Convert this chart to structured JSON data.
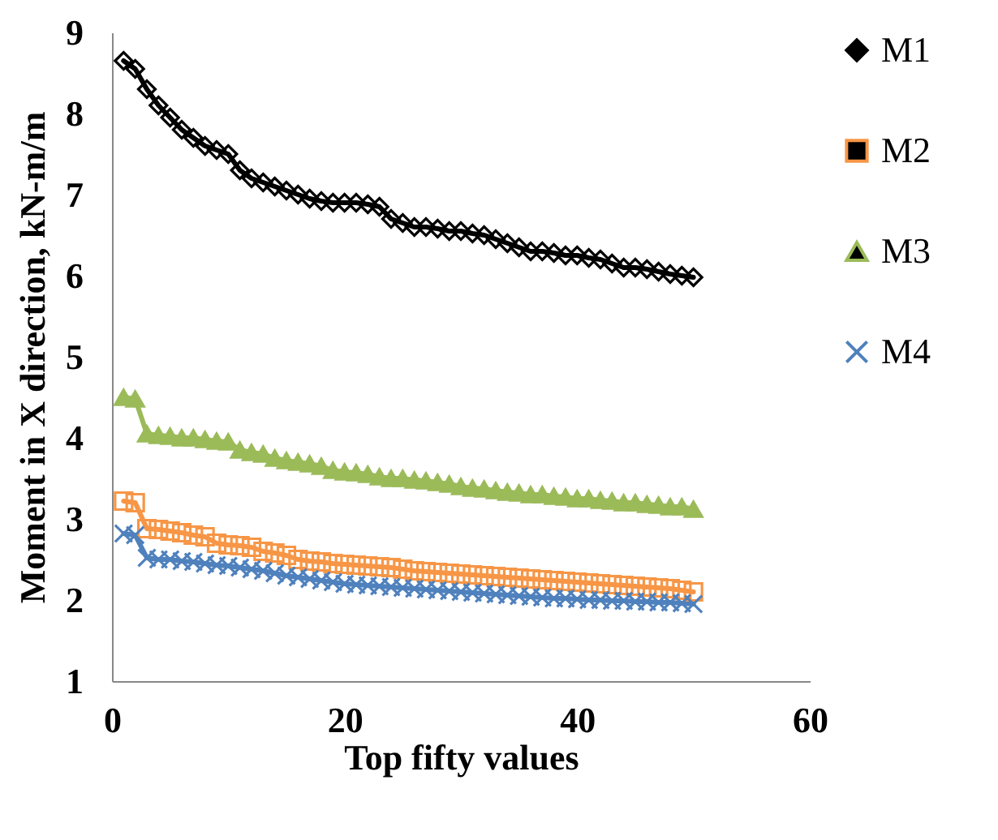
{
  "chart_data": {
    "type": "line",
    "xlabel": "Top fifty values",
    "ylabel": "Moment in X direction, kN-m/m",
    "x": [
      1,
      2,
      3,
      4,
      5,
      6,
      7,
      8,
      9,
      10,
      11,
      12,
      13,
      14,
      15,
      16,
      17,
      18,
      19,
      20,
      21,
      22,
      23,
      24,
      25,
      26,
      27,
      28,
      29,
      30,
      31,
      32,
      33,
      34,
      35,
      36,
      37,
      38,
      39,
      40,
      41,
      42,
      43,
      44,
      45,
      46,
      47,
      48,
      49,
      50
    ],
    "xlim": [
      0,
      60
    ],
    "xticks": [
      0,
      20,
      40,
      60
    ],
    "ylim": [
      1,
      9
    ],
    "yticks": [
      1,
      2,
      3,
      4,
      5,
      6,
      7,
      8,
      9
    ],
    "grid": false,
    "legend": "right",
    "line_style": "solid",
    "series": [
      {
        "name": "M1",
        "color": "#000000",
        "marker": "diamond",
        "values": [
          8.65,
          8.55,
          8.3,
          8.1,
          7.95,
          7.8,
          7.7,
          7.6,
          7.55,
          7.5,
          7.3,
          7.2,
          7.15,
          7.1,
          7.05,
          7.0,
          6.95,
          6.92,
          6.9,
          6.9,
          6.9,
          6.88,
          6.85,
          6.7,
          6.65,
          6.6,
          6.6,
          6.58,
          6.55,
          6.55,
          6.52,
          6.5,
          6.45,
          6.4,
          6.35,
          6.3,
          6.3,
          6.28,
          6.25,
          6.25,
          6.22,
          6.2,
          6.15,
          6.1,
          6.1,
          6.08,
          6.05,
          6.02,
          6.0,
          5.98
        ]
      },
      {
        "name": "M2",
        "color": "#f79646",
        "marker": "square",
        "values": [
          3.22,
          3.2,
          2.88,
          2.87,
          2.85,
          2.83,
          2.8,
          2.78,
          2.7,
          2.68,
          2.67,
          2.65,
          2.6,
          2.58,
          2.55,
          2.5,
          2.48,
          2.47,
          2.45,
          2.44,
          2.43,
          2.42,
          2.41,
          2.4,
          2.38,
          2.36,
          2.35,
          2.34,
          2.33,
          2.32,
          2.31,
          2.3,
          2.29,
          2.28,
          2.27,
          2.26,
          2.25,
          2.24,
          2.23,
          2.22,
          2.21,
          2.2,
          2.19,
          2.18,
          2.17,
          2.16,
          2.15,
          2.14,
          2.12,
          2.1
        ]
      },
      {
        "name": "M3",
        "color": "#9bbb59",
        "marker": "triangle",
        "values": [
          4.5,
          4.48,
          4.05,
          4.03,
          4.02,
          4.0,
          4.0,
          3.98,
          3.96,
          3.95,
          3.85,
          3.82,
          3.8,
          3.75,
          3.72,
          3.7,
          3.68,
          3.65,
          3.6,
          3.58,
          3.57,
          3.55,
          3.52,
          3.5,
          3.5,
          3.48,
          3.47,
          3.45,
          3.43,
          3.4,
          3.38,
          3.37,
          3.35,
          3.33,
          3.32,
          3.3,
          3.3,
          3.28,
          3.27,
          3.25,
          3.25,
          3.23,
          3.22,
          3.2,
          3.2,
          3.18,
          3.17,
          3.15,
          3.15,
          3.12
        ]
      },
      {
        "name": "M4",
        "color": "#4f81bd",
        "marker": "cross",
        "values": [
          2.82,
          2.8,
          2.52,
          2.5,
          2.5,
          2.48,
          2.47,
          2.45,
          2.43,
          2.42,
          2.4,
          2.38,
          2.36,
          2.33,
          2.3,
          2.28,
          2.26,
          2.24,
          2.22,
          2.2,
          2.19,
          2.18,
          2.17,
          2.16,
          2.15,
          2.14,
          2.13,
          2.12,
          2.11,
          2.1,
          2.09,
          2.08,
          2.07,
          2.06,
          2.05,
          2.04,
          2.03,
          2.02,
          2.02,
          2.01,
          2.0,
          2.0,
          1.99,
          1.99,
          1.98,
          1.98,
          1.97,
          1.97,
          1.96,
          1.95
        ]
      }
    ]
  }
}
